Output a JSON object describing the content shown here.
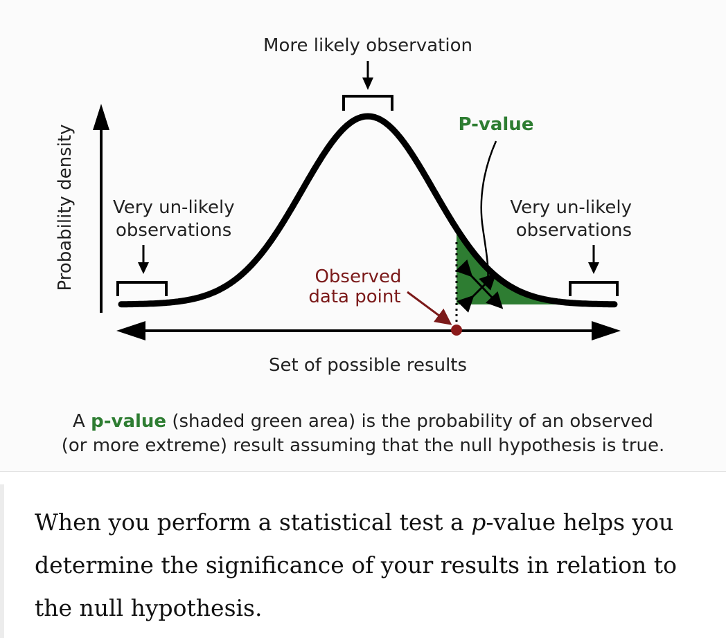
{
  "diagram": {
    "more_likely_label": "More likely observation",
    "p_value_label": "P-value",
    "y_axis_label": "Probability density",
    "left_unlikely": [
      "Very un-likely",
      "observations"
    ],
    "right_unlikely": [
      "Very un-likely",
      "observations"
    ],
    "observed_point": [
      "Observed",
      "data point"
    ],
    "x_axis_label": "Set of possible results",
    "colors": {
      "curve": "#000000",
      "shaded_area": "#2e7d32",
      "observed_point": "#7b1a1a",
      "background": "#fbfbfb"
    }
  },
  "caption": {
    "prefix": "A ",
    "highlight": "p-value",
    "line1_rest": " (shaded green area) is the probability of an observed",
    "line2": "(or more extreme) result assuming that the null hypothesis is true."
  },
  "paragraph": {
    "part1": "When you perform a statistical test a ",
    "italic": "p",
    "part2": "-value helps you determine the significance of your results in relation to the null hypothesis."
  }
}
